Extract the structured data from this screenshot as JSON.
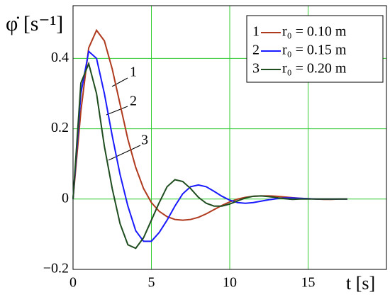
{
  "chart_data": {
    "type": "line",
    "y_label": "φ̇ [s⁻¹]",
    "x_label": "t [s]",
    "x": [
      0,
      0.5,
      1,
      1.5,
      2,
      2.5,
      3,
      3.5,
      4,
      4.5,
      5,
      5.5,
      6,
      6.5,
      7,
      7.5,
      8,
      8.5,
      9,
      9.5,
      10,
      10.5,
      11,
      11.5,
      12,
      12.5,
      13,
      13.5,
      14,
      14.5,
      15,
      15.5,
      16,
      16.5,
      17,
      17.5
    ],
    "series": [
      {
        "label": "1",
        "name": "r₀ = 0.10 m",
        "color": "#b03a1e",
        "values": [
          0,
          0.25,
          0.43,
          0.48,
          0.45,
          0.37,
          0.27,
          0.17,
          0.09,
          0.03,
          -0.01,
          -0.035,
          -0.05,
          -0.058,
          -0.06,
          -0.058,
          -0.052,
          -0.042,
          -0.03,
          -0.018,
          -0.008,
          0,
          0.005,
          0.008,
          0.009,
          0.009,
          0.008,
          0.006,
          0.004,
          0.002,
          0.001,
          0,
          -0.001,
          -0.001,
          0,
          0
        ]
      },
      {
        "label": "2",
        "name": "r₀ = 0.15 m",
        "color": "#1a1aff",
        "values": [
          0,
          0.3,
          0.42,
          0.4,
          0.3,
          0.18,
          0.07,
          -0.02,
          -0.09,
          -0.12,
          -0.12,
          -0.095,
          -0.06,
          -0.02,
          0.015,
          0.035,
          0.04,
          0.035,
          0.022,
          0.008,
          -0.003,
          -0.01,
          -0.012,
          -0.01,
          -0.006,
          -0.002,
          0.001,
          0.003,
          0.003,
          0.002,
          0.001,
          0,
          0,
          0,
          0,
          0
        ]
      },
      {
        "label": "3",
        "name": "r₀ = 0.20 m",
        "color": "#1f4d1f",
        "values": [
          0,
          0.33,
          0.385,
          0.3,
          0.15,
          0.03,
          -0.07,
          -0.13,
          -0.14,
          -0.11,
          -0.06,
          -0.01,
          0.035,
          0.055,
          0.05,
          0.03,
          0.005,
          -0.012,
          -0.02,
          -0.02,
          -0.014,
          -0.005,
          0.003,
          0.008,
          0.009,
          0.007,
          0.004,
          0.001,
          -0.001,
          0,
          0,
          0,
          0,
          0,
          0,
          0
        ]
      }
    ],
    "xlim": [
      0,
      20
    ],
    "xticks": [
      0,
      5,
      10,
      15
    ],
    "ylim": [
      -0.2,
      0.55
    ],
    "yticks": [
      {
        "value": -0.2,
        "label": "−0.2"
      },
      0,
      0.2,
      0.4
    ],
    "grid": true,
    "grid_color": "#33cc33",
    "legend": "top-right"
  }
}
